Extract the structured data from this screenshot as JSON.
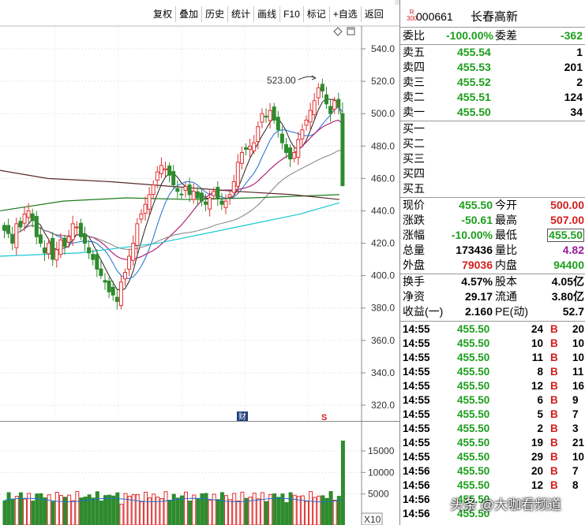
{
  "toolbar": {
    "buttons": [
      "复权",
      "叠加",
      "历史",
      "统计",
      "画线",
      "F10",
      "标记",
      "+自选",
      "返回"
    ]
  },
  "stock": {
    "badge_top": "R",
    "badge_bottom": "300",
    "code": "000661",
    "name": "长春高新"
  },
  "order_book": {
    "weibi_label": "委比",
    "weibi_value": "-100.00%",
    "weicha_label": "委差",
    "weicha_value": "-362",
    "sells": [
      {
        "label": "卖五",
        "price": "455.54",
        "vol": "1"
      },
      {
        "label": "卖四",
        "price": "455.53",
        "vol": "201"
      },
      {
        "label": "卖三",
        "price": "455.52",
        "vol": "2"
      },
      {
        "label": "卖二",
        "price": "455.51",
        "vol": "124"
      },
      {
        "label": "卖一",
        "price": "455.50",
        "vol": "34"
      }
    ],
    "buys": [
      {
        "label": "买一",
        "price": "",
        "vol": ""
      },
      {
        "label": "买二",
        "price": "",
        "vol": ""
      },
      {
        "label": "买三",
        "price": "",
        "vol": ""
      },
      {
        "label": "买四",
        "price": "",
        "vol": ""
      },
      {
        "label": "买五",
        "price": "",
        "vol": ""
      }
    ]
  },
  "quote": {
    "rows": [
      {
        "l1": "现价",
        "v1": "455.50",
        "c1": "green",
        "l2": "今开",
        "v2": "500.00",
        "c2": "red"
      },
      {
        "l1": "涨跌",
        "v1": "-50.61",
        "c1": "green",
        "l2": "最高",
        "v2": "507.00",
        "c2": "red"
      },
      {
        "l1": "涨幅",
        "v1": "-10.00%",
        "c1": "green",
        "l2": "最低",
        "v2": "455.50",
        "c2": "green"
      },
      {
        "l1": "总量",
        "v1": "173436",
        "c1": "",
        "l2": "量比",
        "v2": "4.82",
        "c2": "purple"
      },
      {
        "l1": "外盘",
        "v1": "79036",
        "c1": "red",
        "l2": "内盘",
        "v2": "94400",
        "c2": "green"
      }
    ],
    "rows2": [
      {
        "l1": "换手",
        "v1": "4.57%",
        "l2": "股本",
        "v2": "4.05亿"
      },
      {
        "l1": "净资",
        "v1": "29.17",
        "l2": "流通",
        "v2": "3.80亿"
      },
      {
        "l1": "收益(一)",
        "v1": "2.160",
        "l2": "PE(动)",
        "v2": "52.7"
      }
    ]
  },
  "trades": [
    {
      "time": "14:55",
      "price": "455.50",
      "vol": "24",
      "side": "B",
      "n": "20"
    },
    {
      "time": "14:55",
      "price": "455.50",
      "vol": "10",
      "side": "B",
      "n": "10"
    },
    {
      "time": "14:55",
      "price": "455.50",
      "vol": "11",
      "side": "B",
      "n": "10"
    },
    {
      "time": "14:55",
      "price": "455.50",
      "vol": "8",
      "side": "B",
      "n": "11"
    },
    {
      "time": "14:55",
      "price": "455.50",
      "vol": "12",
      "side": "B",
      "n": "16"
    },
    {
      "time": "14:55",
      "price": "455.50",
      "vol": "6",
      "side": "B",
      "n": "9"
    },
    {
      "time": "14:55",
      "price": "455.50",
      "vol": "5",
      "side": "B",
      "n": "7"
    },
    {
      "time": "14:55",
      "price": "455.50",
      "vol": "2",
      "side": "B",
      "n": "3"
    },
    {
      "time": "14:55",
      "price": "455.50",
      "vol": "19",
      "side": "B",
      "n": "21"
    },
    {
      "time": "14:55",
      "price": "455.50",
      "vol": "29",
      "side": "B",
      "n": "10"
    },
    {
      "time": "14:56",
      "price": "455.50",
      "vol": "20",
      "side": "B",
      "n": "7"
    },
    {
      "time": "14:56",
      "price": "455.50",
      "vol": "12",
      "side": "B",
      "n": "8"
    },
    {
      "time": "14:56",
      "price": "455.50",
      "vol": "",
      "side": "",
      "n": ""
    },
    {
      "time": "14:56",
      "price": "455.50",
      "vol": "",
      "side": "",
      "n": ""
    }
  ],
  "chart": {
    "price_ticks": [
      "540.0",
      "520.0",
      "500.0",
      "480.0",
      "460.0",
      "440.0",
      "420.0",
      "400.0",
      "380.0",
      "360.0",
      "340.0",
      "320.0"
    ],
    "vol_ticks": [
      "15000",
      "10000",
      "5000"
    ],
    "vol_unit": "X10",
    "high_annotation": "523.00",
    "marker_cai": "财",
    "marker_s": "S",
    "colors": {
      "up": "#e03030",
      "down": "#2e8b2e",
      "ma5": "#222222",
      "ma10": "#1e6fd0",
      "ma20": "#b0237a",
      "ma60": "#808080",
      "ma120": "#1a7a1a",
      "ma250": "#5a2a2a",
      "ma_cyan": "#19c8d2"
    }
  },
  "watermark": "头条 @大咖看频道"
}
